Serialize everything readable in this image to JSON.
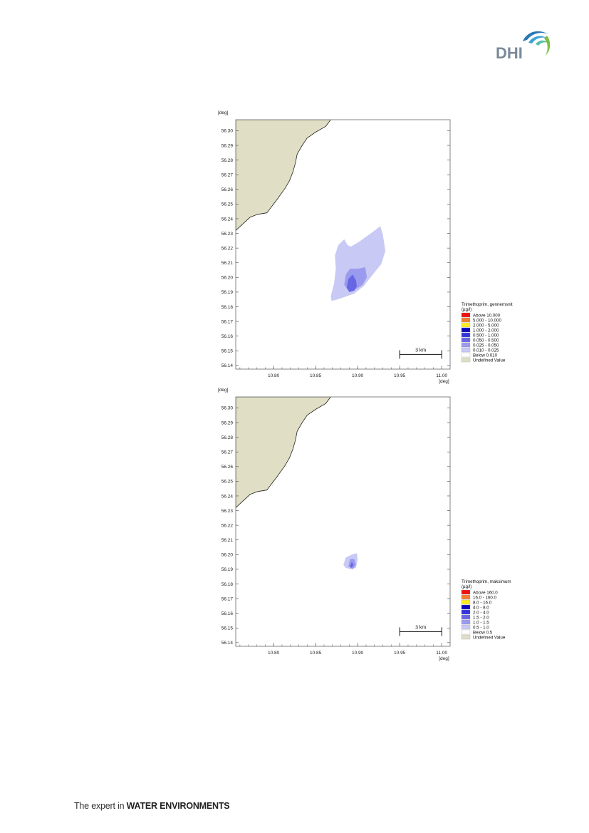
{
  "header": {
    "logo_text": "DHI"
  },
  "footer": {
    "lead": "The expert in",
    "strong": "WATER ENVIRONMENTS"
  },
  "colors": {
    "land": "#e0dfc6",
    "coast": "#222222"
  },
  "chart_data": [
    {
      "type": "heatmap",
      "x_unit": "[deg]",
      "y_unit": "[deg]",
      "xlim": [
        10.755,
        11.01
      ],
      "ylim": [
        56.1375,
        56.3075
      ],
      "x_ticks": [
        "10.80",
        "10.85",
        "10.90",
        "10.95",
        "11.00"
      ],
      "y_ticks": [
        "56.30",
        "56.29",
        "56.28",
        "56.27",
        "56.26",
        "56.25",
        "56.24",
        "56.23",
        "56.22",
        "56.21",
        "56.20",
        "56.19",
        "56.18",
        "56.17",
        "56.16",
        "56.15",
        "56.14"
      ],
      "scale_bar": {
        "label": "3 km",
        "x_from": 10.95,
        "x_to": 11.0,
        "y": 56.1475
      },
      "land_polygon": [
        [
          10.755,
          56.3075
        ],
        [
          10.868,
          56.3075
        ],
        [
          10.862,
          56.303
        ],
        [
          10.85,
          56.299
        ],
        [
          10.84,
          56.295
        ],
        [
          10.834,
          56.29
        ],
        [
          10.828,
          56.284
        ],
        [
          10.826,
          56.278
        ],
        [
          10.823,
          56.272
        ],
        [
          10.819,
          56.266
        ],
        [
          10.814,
          56.261
        ],
        [
          10.804,
          56.253
        ],
        [
          10.792,
          56.244
        ],
        [
          10.781,
          56.243
        ],
        [
          10.772,
          56.241
        ],
        [
          10.755,
          56.232
        ]
      ],
      "legend": {
        "title": "Trimethoprim, gennemsnit",
        "unit": "(µg/l)",
        "entries": [
          {
            "label": "Above 10.000",
            "color": "#ee1111"
          },
          {
            "label": "5.000 - 10.000",
            "color": "#f08030"
          },
          {
            "label": "2.000 - 5.000",
            "color": "#ffee22"
          },
          {
            "label": "1.000 - 2.000",
            "color": "#0b0bbb"
          },
          {
            "label": "0.500 - 1.000",
            "color": "#3434dd"
          },
          {
            "label": "0.050 - 0.500",
            "color": "#6767e6"
          },
          {
            "label": "0.025 - 0.050",
            "color": "#9a9aee"
          },
          {
            "label": "0.010 - 0.025",
            "color": "#c9c9f6"
          },
          {
            "label": "Below 0.010",
            "color": "#ffffff"
          },
          {
            "label": "Undefined Value",
            "color": "#e0dfc6"
          }
        ]
      },
      "contours": [
        {
          "color": "#c9c9f6",
          "points": [
            [
              10.868,
              56.187
            ],
            [
              10.872,
              56.196
            ],
            [
              10.874,
              56.206
            ],
            [
              10.873,
              56.215
            ],
            [
              10.877,
              56.222
            ],
            [
              10.884,
              56.226
            ],
            [
              10.888,
              56.222
            ],
            [
              10.892,
              56.221
            ],
            [
              10.901,
              56.224
            ],
            [
              10.918,
              56.231
            ],
            [
              10.927,
              56.235
            ],
            [
              10.93,
              56.229
            ],
            [
              10.933,
              56.218
            ],
            [
              10.928,
              56.209
            ],
            [
              10.918,
              56.202
            ],
            [
              10.907,
              56.194
            ],
            [
              10.896,
              56.189
            ],
            [
              10.886,
              56.187
            ],
            [
              10.876,
              56.185
            ],
            [
              10.869,
              56.184
            ]
          ]
        },
        {
          "color": "#9a9aee",
          "points": [
            [
              10.884,
              56.195
            ],
            [
              10.886,
              56.202
            ],
            [
              10.891,
              56.206
            ],
            [
              10.901,
              56.206
            ],
            [
              10.909,
              56.207
            ],
            [
              10.911,
              56.2
            ],
            [
              10.906,
              56.195
            ],
            [
              10.898,
              56.192
            ],
            [
              10.889,
              56.191
            ]
          ]
        },
        {
          "color": "#6767e6",
          "points": [
            [
              10.887,
              56.193
            ],
            [
              10.889,
              56.199
            ],
            [
              10.894,
              56.202
            ],
            [
              10.898,
              56.198
            ],
            [
              10.899,
              56.194
            ],
            [
              10.896,
              56.191
            ],
            [
              10.89,
              56.19
            ]
          ]
        }
      ]
    },
    {
      "type": "heatmap",
      "x_unit": "[deg]",
      "y_unit": "[deg]",
      "xlim": [
        10.755,
        11.01
      ],
      "ylim": [
        56.1375,
        56.3075
      ],
      "x_ticks": [
        "10.80",
        "10.85",
        "10.90",
        "10.95",
        "11.00"
      ],
      "y_ticks": [
        "56.30",
        "56.29",
        "56.28",
        "56.27",
        "56.26",
        "56.25",
        "56.24",
        "56.23",
        "56.22",
        "56.21",
        "56.20",
        "56.19",
        "56.18",
        "56.17",
        "56.16",
        "56.15",
        "56.14"
      ],
      "scale_bar": {
        "label": "3 km",
        "x_from": 10.95,
        "x_to": 11.0,
        "y": 56.1475
      },
      "land_polygon": [
        [
          10.755,
          56.3075
        ],
        [
          10.868,
          56.3075
        ],
        [
          10.862,
          56.303
        ],
        [
          10.85,
          56.299
        ],
        [
          10.84,
          56.295
        ],
        [
          10.834,
          56.29
        ],
        [
          10.828,
          56.284
        ],
        [
          10.826,
          56.278
        ],
        [
          10.823,
          56.272
        ],
        [
          10.819,
          56.266
        ],
        [
          10.814,
          56.261
        ],
        [
          10.804,
          56.253
        ],
        [
          10.792,
          56.244
        ],
        [
          10.781,
          56.243
        ],
        [
          10.772,
          56.241
        ],
        [
          10.755,
          56.232
        ]
      ],
      "legend": {
        "title": "Trimethoprim, maksimum",
        "unit": "(µg/l)",
        "entries": [
          {
            "label": "Above 160.0",
            "color": "#ee1111"
          },
          {
            "label": "16.0 - 160.0",
            "color": "#f08030"
          },
          {
            "label": "8.0 - 16.0",
            "color": "#ffee22"
          },
          {
            "label": "4.0 - 8.0",
            "color": "#0b0bbb"
          },
          {
            "label": "2.0 - 4.0",
            "color": "#3434dd"
          },
          {
            "label": "1.5 - 2.0",
            "color": "#6767e6"
          },
          {
            "label": "1.0 - 1.5",
            "color": "#9a9aee"
          },
          {
            "label": "0.5 - 1.0",
            "color": "#c9c9f6"
          },
          {
            "label": "Below 0.5",
            "color": "#ffffff"
          },
          {
            "label": "Undefined Value",
            "color": "#e0dfc6"
          }
        ]
      },
      "contours": [
        {
          "color": "#c9c9f6",
          "points": [
            [
              10.883,
              56.193
            ],
            [
              10.886,
              56.198
            ],
            [
              10.893,
              56.2
            ],
            [
              10.899,
              56.201
            ],
            [
              10.9,
              56.197
            ],
            [
              10.898,
              56.191
            ],
            [
              10.892,
              56.19
            ],
            [
              10.886,
              56.191
            ]
          ]
        },
        {
          "color": "#9a9aee",
          "points": [
            [
              10.889,
              56.192
            ],
            [
              10.891,
              56.197
            ],
            [
              10.896,
              56.197
            ],
            [
              10.898,
              56.193
            ],
            [
              10.894,
              56.19
            ]
          ]
        },
        {
          "color": "#6767e6",
          "points": [
            [
              10.891,
              56.192
            ],
            [
              10.893,
              56.195
            ],
            [
              10.895,
              56.193
            ],
            [
              10.893,
              56.191
            ]
          ]
        }
      ]
    }
  ]
}
